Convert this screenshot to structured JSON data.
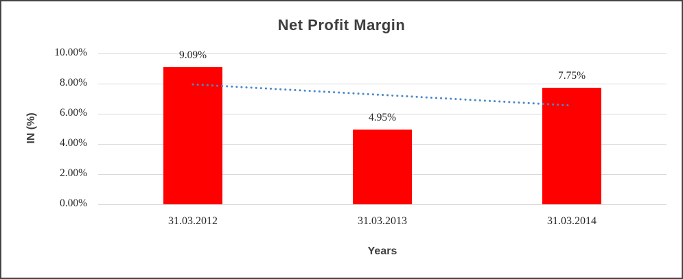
{
  "window": {
    "background": "#FFFFFF",
    "border_color": "#454545"
  },
  "chart_data": {
    "type": "bar",
    "title": "Net Profit Margin",
    "xlabel": "Years",
    "ylabel": "IN (%)",
    "categories": [
      "31.03.2012",
      "31.03.2013",
      "31.03.2014"
    ],
    "series": [
      {
        "name": "Net Profit Margin",
        "values": [
          9.09,
          4.95,
          7.75
        ]
      }
    ],
    "data_labels": [
      "9.09%",
      "4.95%",
      "7.75%"
    ],
    "ylim": [
      0,
      10
    ],
    "yticks": [
      {
        "value": 10,
        "label": "10.00%"
      },
      {
        "value": 8,
        "label": "8.00%"
      },
      {
        "value": 6,
        "label": "6.00%"
      },
      {
        "value": 4,
        "label": "4.00%"
      },
      {
        "value": 2,
        "label": "2.00%"
      },
      {
        "value": 0,
        "label": "0.00%"
      }
    ],
    "grid": "horizontal",
    "legend": "none",
    "colors": {
      "bar": "#FF0000",
      "trendline": "#4A89C8",
      "gridline": "#D9D9D9",
      "title_text": "#3F3F3F",
      "axis_text": "#262626"
    },
    "trendline": {
      "type": "linear",
      "style": "dotted",
      "from": {
        "category_index": 0,
        "value": 7.95
      },
      "to": {
        "category_index": 2,
        "value": 6.55
      }
    }
  }
}
